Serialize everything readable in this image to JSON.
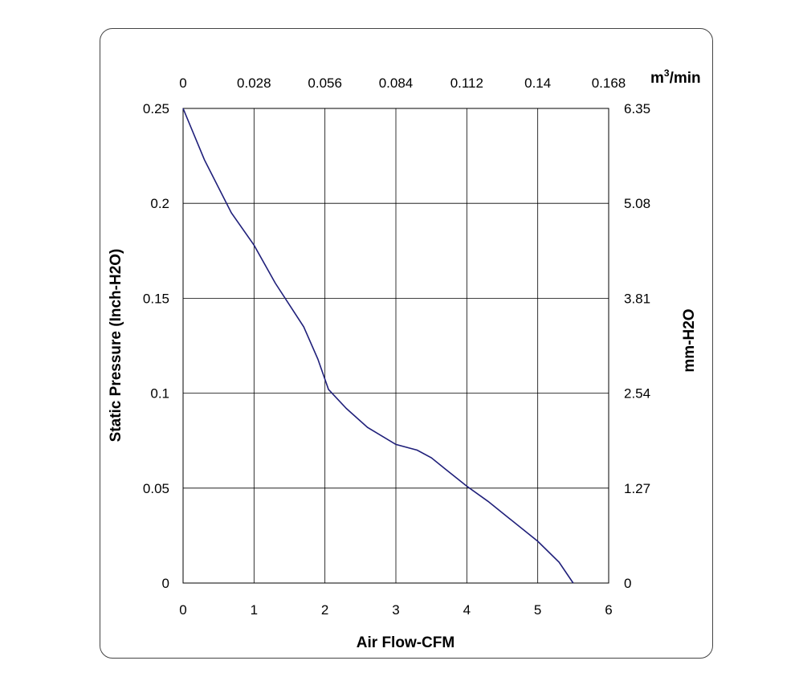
{
  "chart_data": {
    "type": "line",
    "title": "",
    "xlabel": "Air Flow-CFM",
    "ylabel": "Static Pressure (Inch-H2O)",
    "y2label": "mm-H2O",
    "x2label_base": "m",
    "x2label_sup": "3",
    "x2label_rest": "/min",
    "xlim": [
      0,
      6
    ],
    "ylim": [
      0,
      0.25
    ],
    "grid": true,
    "x_ticks": [
      "0",
      "1",
      "2",
      "3",
      "4",
      "5",
      "6"
    ],
    "y_ticks": [
      "0",
      "0.05",
      "0.1",
      "0.15",
      "0.2",
      "0.25"
    ],
    "x2_ticks": [
      "0",
      "0.028",
      "0.056",
      "0.084",
      "0.112",
      "0.14",
      "0.168"
    ],
    "y2_ticks": [
      "0",
      "1.27",
      "2.54",
      "3.81",
      "5.08",
      "6.35"
    ],
    "line_color": "#1f1f7a",
    "series": [
      {
        "x": [
          0,
          0.3,
          0.68,
          1.0,
          1.3,
          1.7,
          1.9,
          2.05,
          2.3,
          2.6,
          3.0,
          3.3,
          3.5,
          3.7,
          4.0,
          4.3,
          4.6,
          5.0,
          5.3,
          5.5
        ],
        "y": [
          0.25,
          0.223,
          0.195,
          0.178,
          0.158,
          0.135,
          0.118,
          0.102,
          0.092,
          0.082,
          0.073,
          0.07,
          0.066,
          0.06,
          0.051,
          0.043,
          0.034,
          0.022,
          0.011,
          0.0
        ]
      }
    ]
  }
}
